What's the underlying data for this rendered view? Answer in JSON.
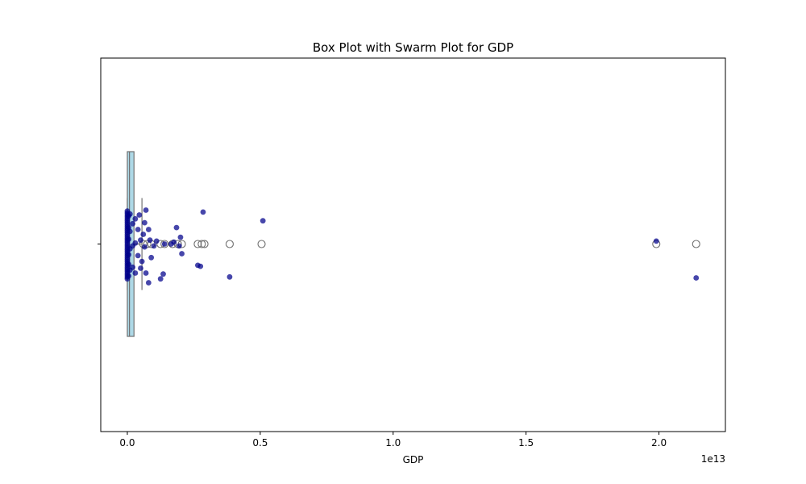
{
  "chart_data": {
    "type": "box",
    "title": "Box Plot with Swarm Plot for GDP",
    "xlabel": "GDP",
    "ylabel": "",
    "x_offset_label": "1e13",
    "xlim": [
      -0.1,
      2.25
    ],
    "x_ticks": [
      0.0,
      0.5,
      1.0,
      1.5,
      2.0
    ],
    "x_tick_labels": [
      "0.0",
      "0.5",
      "1.0",
      "1.5",
      "2.0"
    ],
    "grid": false,
    "box": {
      "q1": 0.0,
      "median": 0.005,
      "q3": 0.025,
      "whisker_low": 0.0,
      "whisker_high": 0.055,
      "fill_color": "#add8e6",
      "edge_color": "#707070"
    },
    "outliers": [
      0.06,
      0.075,
      0.09,
      0.125,
      0.14,
      0.17,
      0.19,
      0.205,
      0.265,
      0.28,
      0.29,
      0.385,
      0.505,
      1.99,
      2.14
    ],
    "swarm": {
      "color": "#00008b",
      "points": [
        {
          "x": 0.0,
          "j": -0.36
        },
        {
          "x": 0.0,
          "j": -0.34
        },
        {
          "x": 0.0,
          "j": -0.32
        },
        {
          "x": 0.0,
          "j": -0.3
        },
        {
          "x": 0.0,
          "j": -0.28
        },
        {
          "x": 0.0,
          "j": -0.26
        },
        {
          "x": 0.0,
          "j": -0.24
        },
        {
          "x": 0.0,
          "j": -0.22
        },
        {
          "x": 0.0,
          "j": -0.2
        },
        {
          "x": 0.0,
          "j": -0.18
        },
        {
          "x": 0.0,
          "j": -0.16
        },
        {
          "x": 0.0,
          "j": -0.14
        },
        {
          "x": 0.0,
          "j": -0.12
        },
        {
          "x": 0.0,
          "j": -0.1
        },
        {
          "x": 0.0,
          "j": -0.08
        },
        {
          "x": 0.0,
          "j": -0.06
        },
        {
          "x": 0.0,
          "j": -0.04
        },
        {
          "x": 0.0,
          "j": -0.02
        },
        {
          "x": 0.0,
          "j": 0.0
        },
        {
          "x": 0.0,
          "j": 0.02
        },
        {
          "x": 0.0,
          "j": 0.04
        },
        {
          "x": 0.0,
          "j": 0.06
        },
        {
          "x": 0.0,
          "j": 0.08
        },
        {
          "x": 0.0,
          "j": 0.1
        },
        {
          "x": 0.0,
          "j": 0.12
        },
        {
          "x": 0.0,
          "j": 0.14
        },
        {
          "x": 0.0,
          "j": 0.16
        },
        {
          "x": 0.0,
          "j": 0.18
        },
        {
          "x": 0.0,
          "j": 0.2
        },
        {
          "x": 0.0,
          "j": 0.22
        },
        {
          "x": 0.0,
          "j": 0.24
        },
        {
          "x": 0.0,
          "j": 0.26
        },
        {
          "x": 0.0,
          "j": 0.28
        },
        {
          "x": 0.0,
          "j": 0.3
        },
        {
          "x": 0.0,
          "j": 0.32
        },
        {
          "x": 0.0,
          "j": 0.34
        },
        {
          "x": 0.005,
          "j": -0.33
        },
        {
          "x": 0.005,
          "j": -0.21
        },
        {
          "x": 0.005,
          "j": -0.11
        },
        {
          "x": 0.005,
          "j": 0.05
        },
        {
          "x": 0.005,
          "j": 0.17
        },
        {
          "x": 0.005,
          "j": 0.29
        },
        {
          "x": 0.01,
          "j": -0.27
        },
        {
          "x": 0.01,
          "j": -0.05
        },
        {
          "x": 0.01,
          "j": 0.13
        },
        {
          "x": 0.01,
          "j": 0.31
        },
        {
          "x": 0.02,
          "j": -0.24
        },
        {
          "x": 0.02,
          "j": -0.02
        },
        {
          "x": 0.02,
          "j": 0.21
        },
        {
          "x": 0.03,
          "j": -0.3
        },
        {
          "x": 0.03,
          "j": 0.01
        },
        {
          "x": 0.03,
          "j": 0.26
        },
        {
          "x": 0.04,
          "j": -0.12
        },
        {
          "x": 0.04,
          "j": 0.15
        },
        {
          "x": 0.045,
          "j": 0.3
        },
        {
          "x": 0.05,
          "j": -0.25
        },
        {
          "x": 0.05,
          "j": 0.04
        },
        {
          "x": 0.055,
          "j": -0.18
        },
        {
          "x": 0.06,
          "j": 0.1
        },
        {
          "x": 0.065,
          "j": -0.03
        },
        {
          "x": 0.065,
          "j": 0.22
        },
        {
          "x": 0.07,
          "j": -0.3
        },
        {
          "x": 0.07,
          "j": 0.35
        },
        {
          "x": 0.08,
          "j": 0.15
        },
        {
          "x": 0.08,
          "j": -0.4
        },
        {
          "x": 0.085,
          "j": 0.04
        },
        {
          "x": 0.09,
          "j": -0.14
        },
        {
          "x": 0.1,
          "j": -0.02
        },
        {
          "x": 0.11,
          "j": 0.03
        },
        {
          "x": 0.125,
          "j": -0.36
        },
        {
          "x": 0.135,
          "j": -0.31
        },
        {
          "x": 0.14,
          "j": 0.0
        },
        {
          "x": 0.165,
          "j": 0.0
        },
        {
          "x": 0.175,
          "j": 0.02
        },
        {
          "x": 0.185,
          "j": 0.17
        },
        {
          "x": 0.195,
          "j": -0.02
        },
        {
          "x": 0.2,
          "j": 0.07
        },
        {
          "x": 0.205,
          "j": -0.1
        },
        {
          "x": 0.265,
          "j": -0.22
        },
        {
          "x": 0.275,
          "j": -0.23
        },
        {
          "x": 0.285,
          "j": 0.33
        },
        {
          "x": 0.385,
          "j": -0.34
        },
        {
          "x": 0.51,
          "j": 0.24
        },
        {
          "x": 1.99,
          "j": 0.03
        },
        {
          "x": 2.14,
          "j": -0.35
        }
      ]
    }
  }
}
